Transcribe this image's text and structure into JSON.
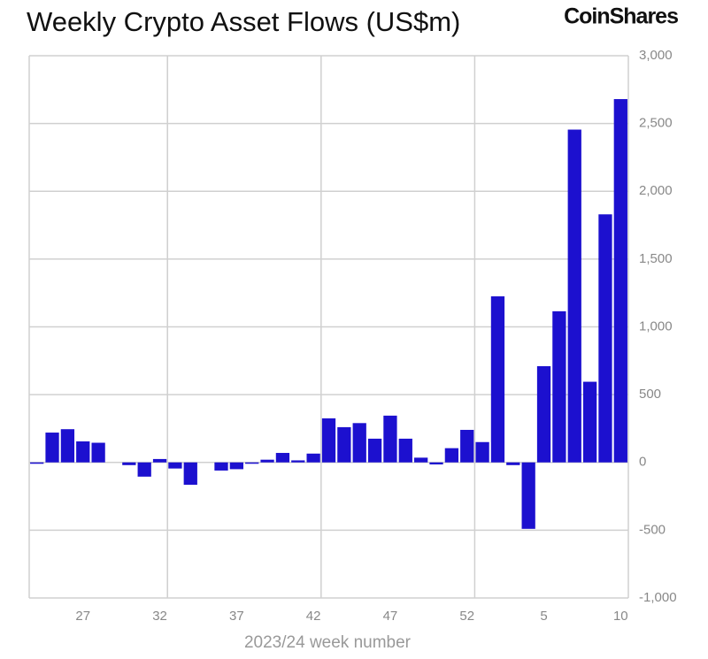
{
  "chart_data": {
    "type": "bar",
    "title": "Weekly Crypto Asset Flows (US$m)",
    "brand": "CoinShares",
    "x_label": "2023/24 week number",
    "categories": [
      null,
      null,
      null,
      "27",
      null,
      null,
      null,
      null,
      "32",
      null,
      null,
      null,
      null,
      "37",
      null,
      null,
      null,
      null,
      "42",
      null,
      null,
      null,
      null,
      "47",
      null,
      null,
      null,
      null,
      "52",
      null,
      null,
      null,
      null,
      "5",
      null,
      null,
      null,
      null,
      "10"
    ],
    "values": [
      -10,
      220,
      245,
      155,
      145,
      0,
      -20,
      -105,
      25,
      -45,
      -165,
      0,
      -60,
      -50,
      -10,
      20,
      70,
      15,
      65,
      325,
      260,
      290,
      175,
      345,
      175,
      35,
      -15,
      105,
      240,
      150,
      1225,
      -20,
      -490,
      710,
      1115,
      2455,
      595,
      1830,
      2680
    ],
    "color": "#1c10cf",
    "ylim": [
      -1000,
      3000
    ],
    "yticks": [
      {
        "value": -1000,
        "label": "-1,000"
      },
      -500,
      0,
      500,
      {
        "value": 1000,
        "label": "1,000"
      },
      {
        "value": 1500,
        "label": "1,500"
      },
      {
        "value": 2000,
        "label": "2,000"
      },
      {
        "value": 2500,
        "label": "2,500"
      },
      {
        "value": 3000,
        "label": "3,000"
      }
    ],
    "grid": true
  }
}
